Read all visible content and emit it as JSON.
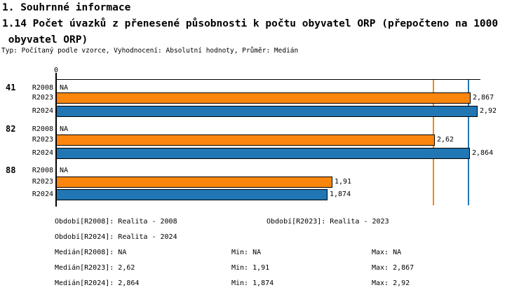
{
  "header": {
    "title_line1": "1. Souhrnné informace",
    "title_line2": "1.14 Počet úvazků z přenesené působnosti k počtu obyvatel ORP (přepočteno na 1000",
    "title_line3": " obyvatel ORP)",
    "subtitle": "Typ: Počítaný podle vzorce, Vyhodnocení: Absolutní hodnoty, Průměr: Medián"
  },
  "chart_data": {
    "type": "bar",
    "orientation": "horizontal",
    "title": "1.14 Počet úvazků z přenesené působnosti k počtu obyvatel ORP (přepočteno na 1000 obyvatel ORP)",
    "xlabel": "",
    "ylabel": "",
    "xlim": [
      0,
      2.95
    ],
    "grid": false,
    "axis": {
      "zero_label": "0"
    },
    "categories": [
      "41",
      "82",
      "88"
    ],
    "series": [
      {
        "name": "R2008",
        "values": [
          null,
          null,
          null
        ],
        "displays": [
          "NA",
          "NA",
          "NA"
        ],
        "color": null
      },
      {
        "name": "R2023",
        "values": [
          2.867,
          2.62,
          1.91
        ],
        "displays": [
          "2,867",
          "2,62",
          "1,91"
        ],
        "color": "#fb860e"
      },
      {
        "name": "R2024",
        "values": [
          2.92,
          2.864,
          1.874
        ],
        "displays": [
          "2,92",
          "2,864",
          "1,874"
        ],
        "color": "#2176b4"
      }
    ],
    "groups": [
      {
        "label": "41",
        "rows": [
          {
            "series": "R2008",
            "value": null,
            "display": "NA"
          },
          {
            "series": "R2023",
            "value": 2.867,
            "display": "2,867"
          },
          {
            "series": "R2024",
            "value": 2.92,
            "display": "2,92"
          }
        ]
      },
      {
        "label": "82",
        "rows": [
          {
            "series": "R2008",
            "value": null,
            "display": "NA"
          },
          {
            "series": "R2023",
            "value": 2.62,
            "display": "2,62"
          },
          {
            "series": "R2024",
            "value": 2.864,
            "display": "2,864"
          }
        ]
      },
      {
        "label": "88",
        "rows": [
          {
            "series": "R2008",
            "value": null,
            "display": "NA"
          },
          {
            "series": "R2023",
            "value": 1.91,
            "display": "1,91"
          },
          {
            "series": "R2024",
            "value": 1.874,
            "display": "1,874"
          }
        ]
      }
    ],
    "series_colors": {
      "R2023": "#fb860e",
      "R2024": "#2176b4"
    },
    "median_lines": [
      {
        "series": "R2023",
        "value": 2.62,
        "color": "#fb860e"
      },
      {
        "series": "R2024",
        "value": 2.864,
        "color": "#2176b4"
      }
    ],
    "legend_position": "bottom"
  },
  "stats": {
    "line1": {
      "left": "Období[R2008]: Realita - 2008",
      "right": "Období[R2023]: Realita - 2023"
    },
    "line2": {
      "left": "Období[R2024]: Realita - 2024"
    },
    "line3": {
      "left": "Medián[R2008]: NA",
      "mid": "Min: NA",
      "right": "Max: NA"
    },
    "line4": {
      "left": "Medián[R2023]: 2,62",
      "mid": "Min: 1,91",
      "right": "Max: 2,867"
    },
    "line5": {
      "left": "Medián[R2024]: 2,864",
      "mid": "Min: 1,874",
      "right": "Max: 2,92"
    }
  }
}
